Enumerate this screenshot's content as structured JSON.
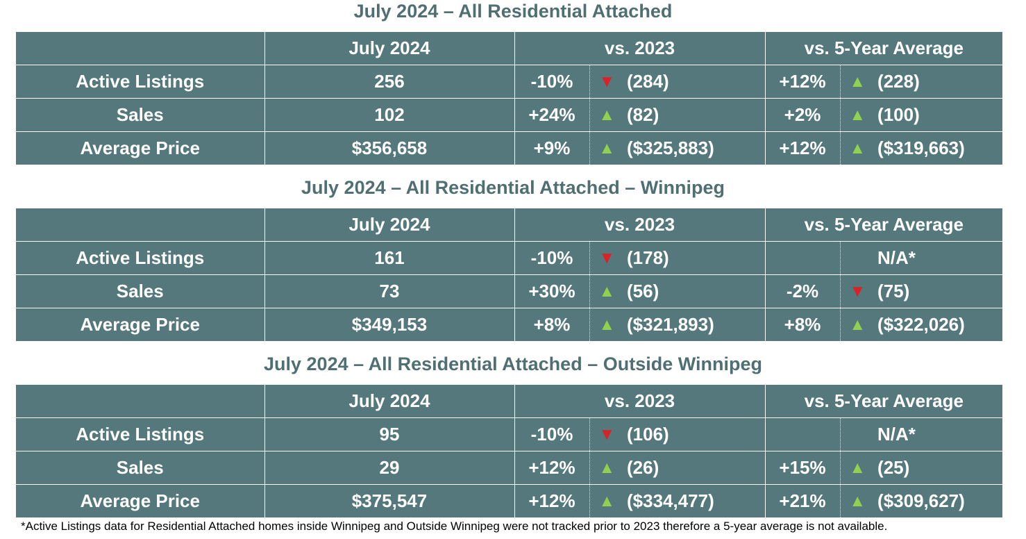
{
  "headers": {
    "current": "July 2024",
    "vs_prior": "vs. 2023",
    "vs_avg": "vs. 5-Year Average"
  },
  "sections": [
    {
      "title": "July 2024 – All Residential Attached",
      "rows": [
        {
          "label": "Active Listings",
          "value": "256",
          "prior_pct": "-10%",
          "prior_dir": "down",
          "prior_val": "(284)",
          "avg_pct": "+12%",
          "avg_dir": "up",
          "avg_val": "(228)"
        },
        {
          "label": "Sales",
          "value": "102",
          "prior_pct": "+24%",
          "prior_dir": "up",
          "prior_val": "(82)",
          "avg_pct": "+2%",
          "avg_dir": "up",
          "avg_val": "(100)"
        },
        {
          "label": "Average Price",
          "value": "$356,658",
          "prior_pct": "+9%",
          "prior_dir": "up",
          "prior_val": "($325,883)",
          "avg_pct": "+12%",
          "avg_dir": "up",
          "avg_val": "($319,663)"
        }
      ]
    },
    {
      "title": "July 2024 – All Residential Attached – Winnipeg",
      "rows": [
        {
          "label": "Active Listings",
          "value": "161",
          "prior_pct": "-10%",
          "prior_dir": "down",
          "prior_val": "(178)",
          "avg_pct": "",
          "avg_dir": "",
          "avg_val": "N/A*"
        },
        {
          "label": "Sales",
          "value": "73",
          "prior_pct": "+30%",
          "prior_dir": "up",
          "prior_val": "(56)",
          "avg_pct": "-2%",
          "avg_dir": "down",
          "avg_val": "(75)"
        },
        {
          "label": "Average Price",
          "value": "$349,153",
          "prior_pct": "+8%",
          "prior_dir": "up",
          "prior_val": "($321,893)",
          "avg_pct": "+8%",
          "avg_dir": "up",
          "avg_val": "($322,026)"
        }
      ]
    },
    {
      "title": "July 2024 – All Residential Attached – Outside Winnipeg",
      "rows": [
        {
          "label": "Active Listings",
          "value": "95",
          "prior_pct": "-10%",
          "prior_dir": "down",
          "prior_val": "(106)",
          "avg_pct": "",
          "avg_dir": "",
          "avg_val": "N/A*"
        },
        {
          "label": "Sales",
          "value": "29",
          "prior_pct": "+12%",
          "prior_dir": "up",
          "prior_val": "(26)",
          "avg_pct": "+15%",
          "avg_dir": "up",
          "avg_val": "(25)"
        },
        {
          "label": "Average Price",
          "value": "$375,547",
          "prior_pct": "+12%",
          "prior_dir": "up",
          "prior_val": "($334,477)",
          "avg_pct": "+21%",
          "avg_dir": "up",
          "avg_val": "($309,627)"
        }
      ]
    }
  ],
  "arrows": {
    "up": "▲",
    "down": "▼"
  },
  "colors": {
    "table_bg": "#54787c",
    "title_text": "#4f6f72",
    "arrow_up": "#92d050",
    "arrow_down": "#d92128"
  },
  "footnote": "*Active Listings data for Residential Attached homes inside Winnipeg and Outside Winnipeg were not tracked prior to 2023 therefore a 5-year average is not available."
}
